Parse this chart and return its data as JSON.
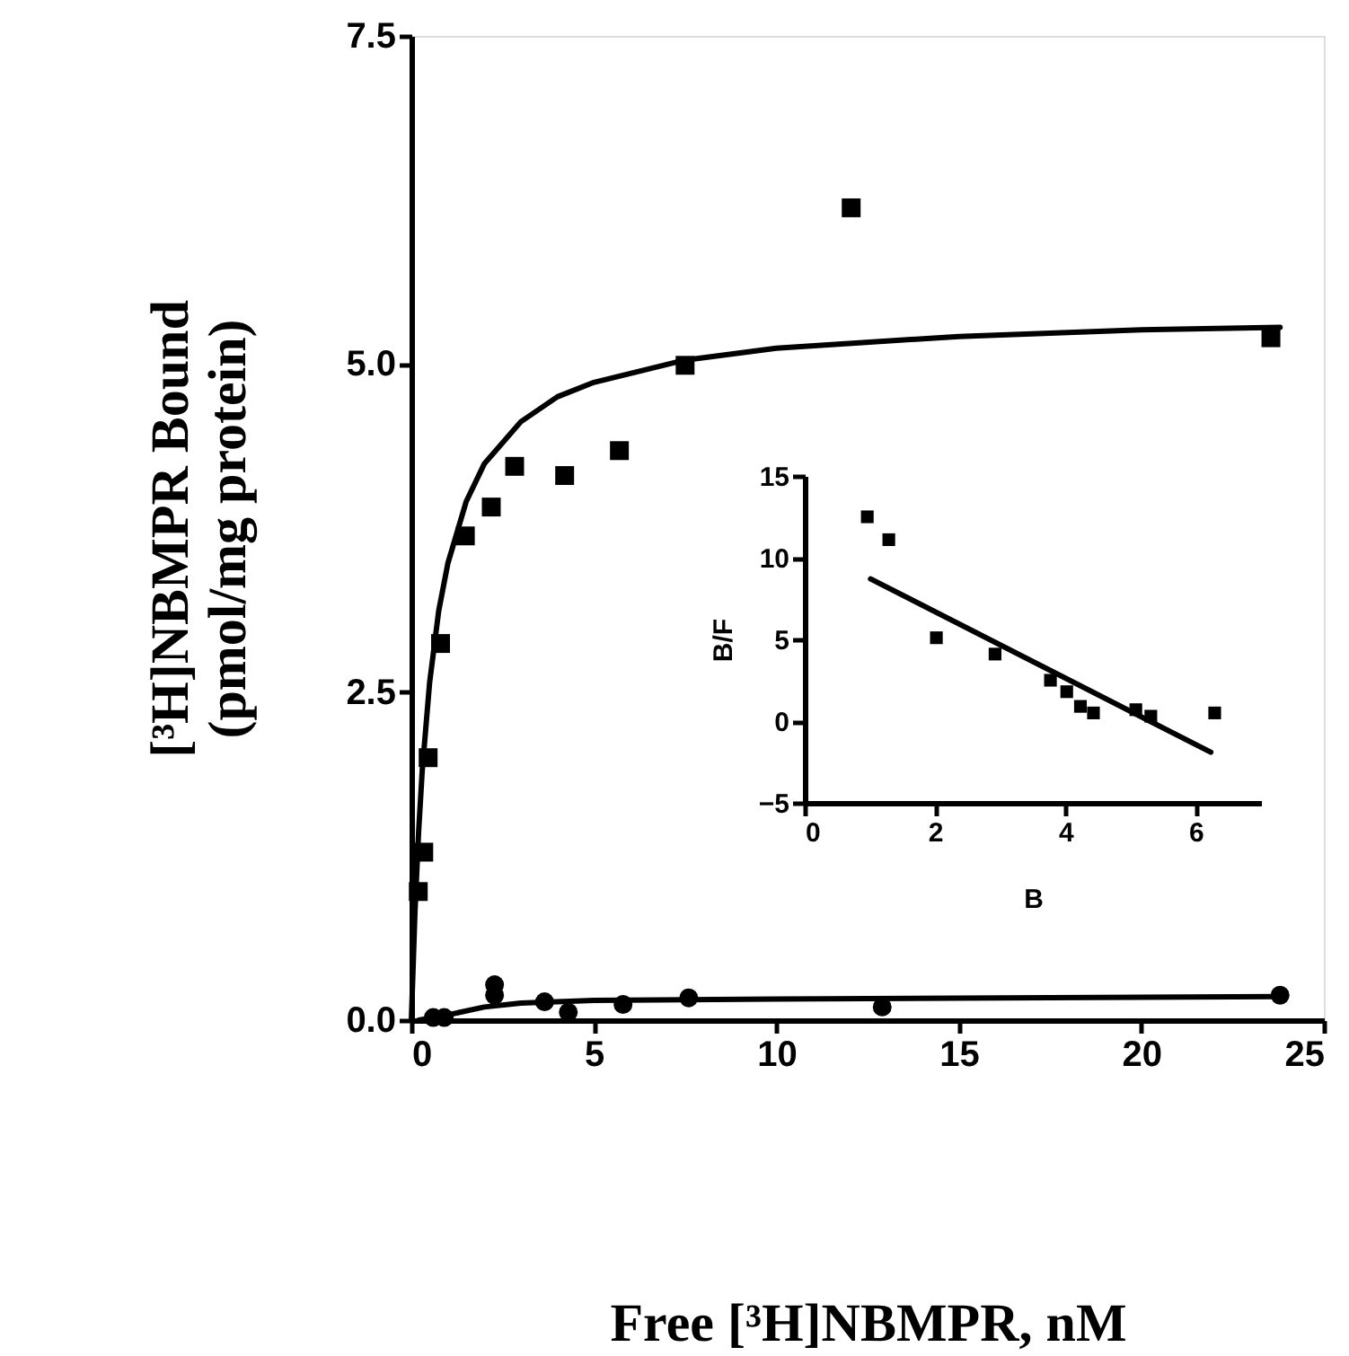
{
  "chart_data": [
    {
      "type": "scatter",
      "xlabel": "Free [³H]NBMPR, nM",
      "ylabel": "[³H]NBMPR Bound\n(pmol/mg protein)",
      "xlim": [
        0,
        25
      ],
      "xticks": [
        0,
        5,
        10,
        15,
        20,
        25
      ],
      "ylim": [
        0,
        7.5
      ],
      "yticks": [
        {
          "value": 0,
          "label": "0.0"
        },
        {
          "value": 2.5,
          "label": "2.5"
        },
        {
          "value": 5,
          "label": "5.0"
        },
        {
          "value": 7.5,
          "label": "7.5"
        }
      ],
      "grid": false,
      "series": [
        {
          "color": "#000000",
          "marker": "square",
          "x": [
            0.19,
            0.34,
            0.46,
            0.8,
            1.48,
            2.19,
            2.83,
            4.2,
            5.7,
            7.5,
            12.05,
            23.55
          ],
          "values": [
            0.98,
            1.28,
            2.0,
            2.87,
            3.69,
            3.91,
            4.22,
            4.15,
            4.34,
            4.99,
            6.19,
            5.2
          ]
        },
        {
          "color": "#000000",
          "marker": "circle",
          "x": [
            0.6,
            0.9,
            2.28,
            2.28,
            3.65,
            4.3,
            5.8,
            7.6,
            12.9,
            23.8
          ],
          "values": [
            0.02,
            0.02,
            0.27,
            0.19,
            0.14,
            0.06,
            0.12,
            0.17,
            0.1,
            0.19
          ]
        },
        {
          "type": "line",
          "color": "#000000",
          "x": [
            0,
            0.1,
            0.2,
            0.3,
            0.5,
            0.75,
            1,
            1.5,
            2,
            3,
            4,
            5,
            7.5,
            10,
            15,
            20,
            23.8
          ],
          "values": [
            0,
            0.83,
            1.44,
            1.91,
            2.57,
            3.12,
            3.48,
            3.95,
            4.24,
            4.56,
            4.75,
            4.86,
            5.03,
            5.12,
            5.21,
            5.26,
            5.28
          ]
        },
        {
          "type": "line",
          "color": "#000000",
          "x": [
            0.2,
            1,
            2,
            3,
            5,
            10,
            23.8
          ],
          "values": [
            0,
            0.04,
            0.1,
            0.13,
            0.15,
            0.16,
            0.18
          ]
        }
      ]
    },
    {
      "type": "scatter",
      "xlabel": "B",
      "ylabel": "B/F",
      "xlim": [
        0,
        7
      ],
      "xticks": [
        0,
        2,
        4,
        6
      ],
      "ylim": [
        -5,
        15
      ],
      "yticks": [
        -5,
        0,
        5,
        10,
        15
      ],
      "grid": false,
      "series": [
        {
          "color": "#000000",
          "marker": "square",
          "x": [
            0.96,
            1.29,
            2.02,
            2.92,
            3.77,
            4.02,
            4.23,
            4.43,
            5.08,
            5.31,
            6.29
          ],
          "values": [
            12.5,
            11.1,
            5.1,
            4.1,
            2.5,
            1.8,
            0.9,
            0.5,
            0.7,
            0.3,
            0.5
          ]
        },
        {
          "type": "line",
          "color": "#000000",
          "x": [
            1.01,
            6.23
          ],
          "values": [
            8.7,
            -1.9
          ]
        }
      ]
    }
  ]
}
